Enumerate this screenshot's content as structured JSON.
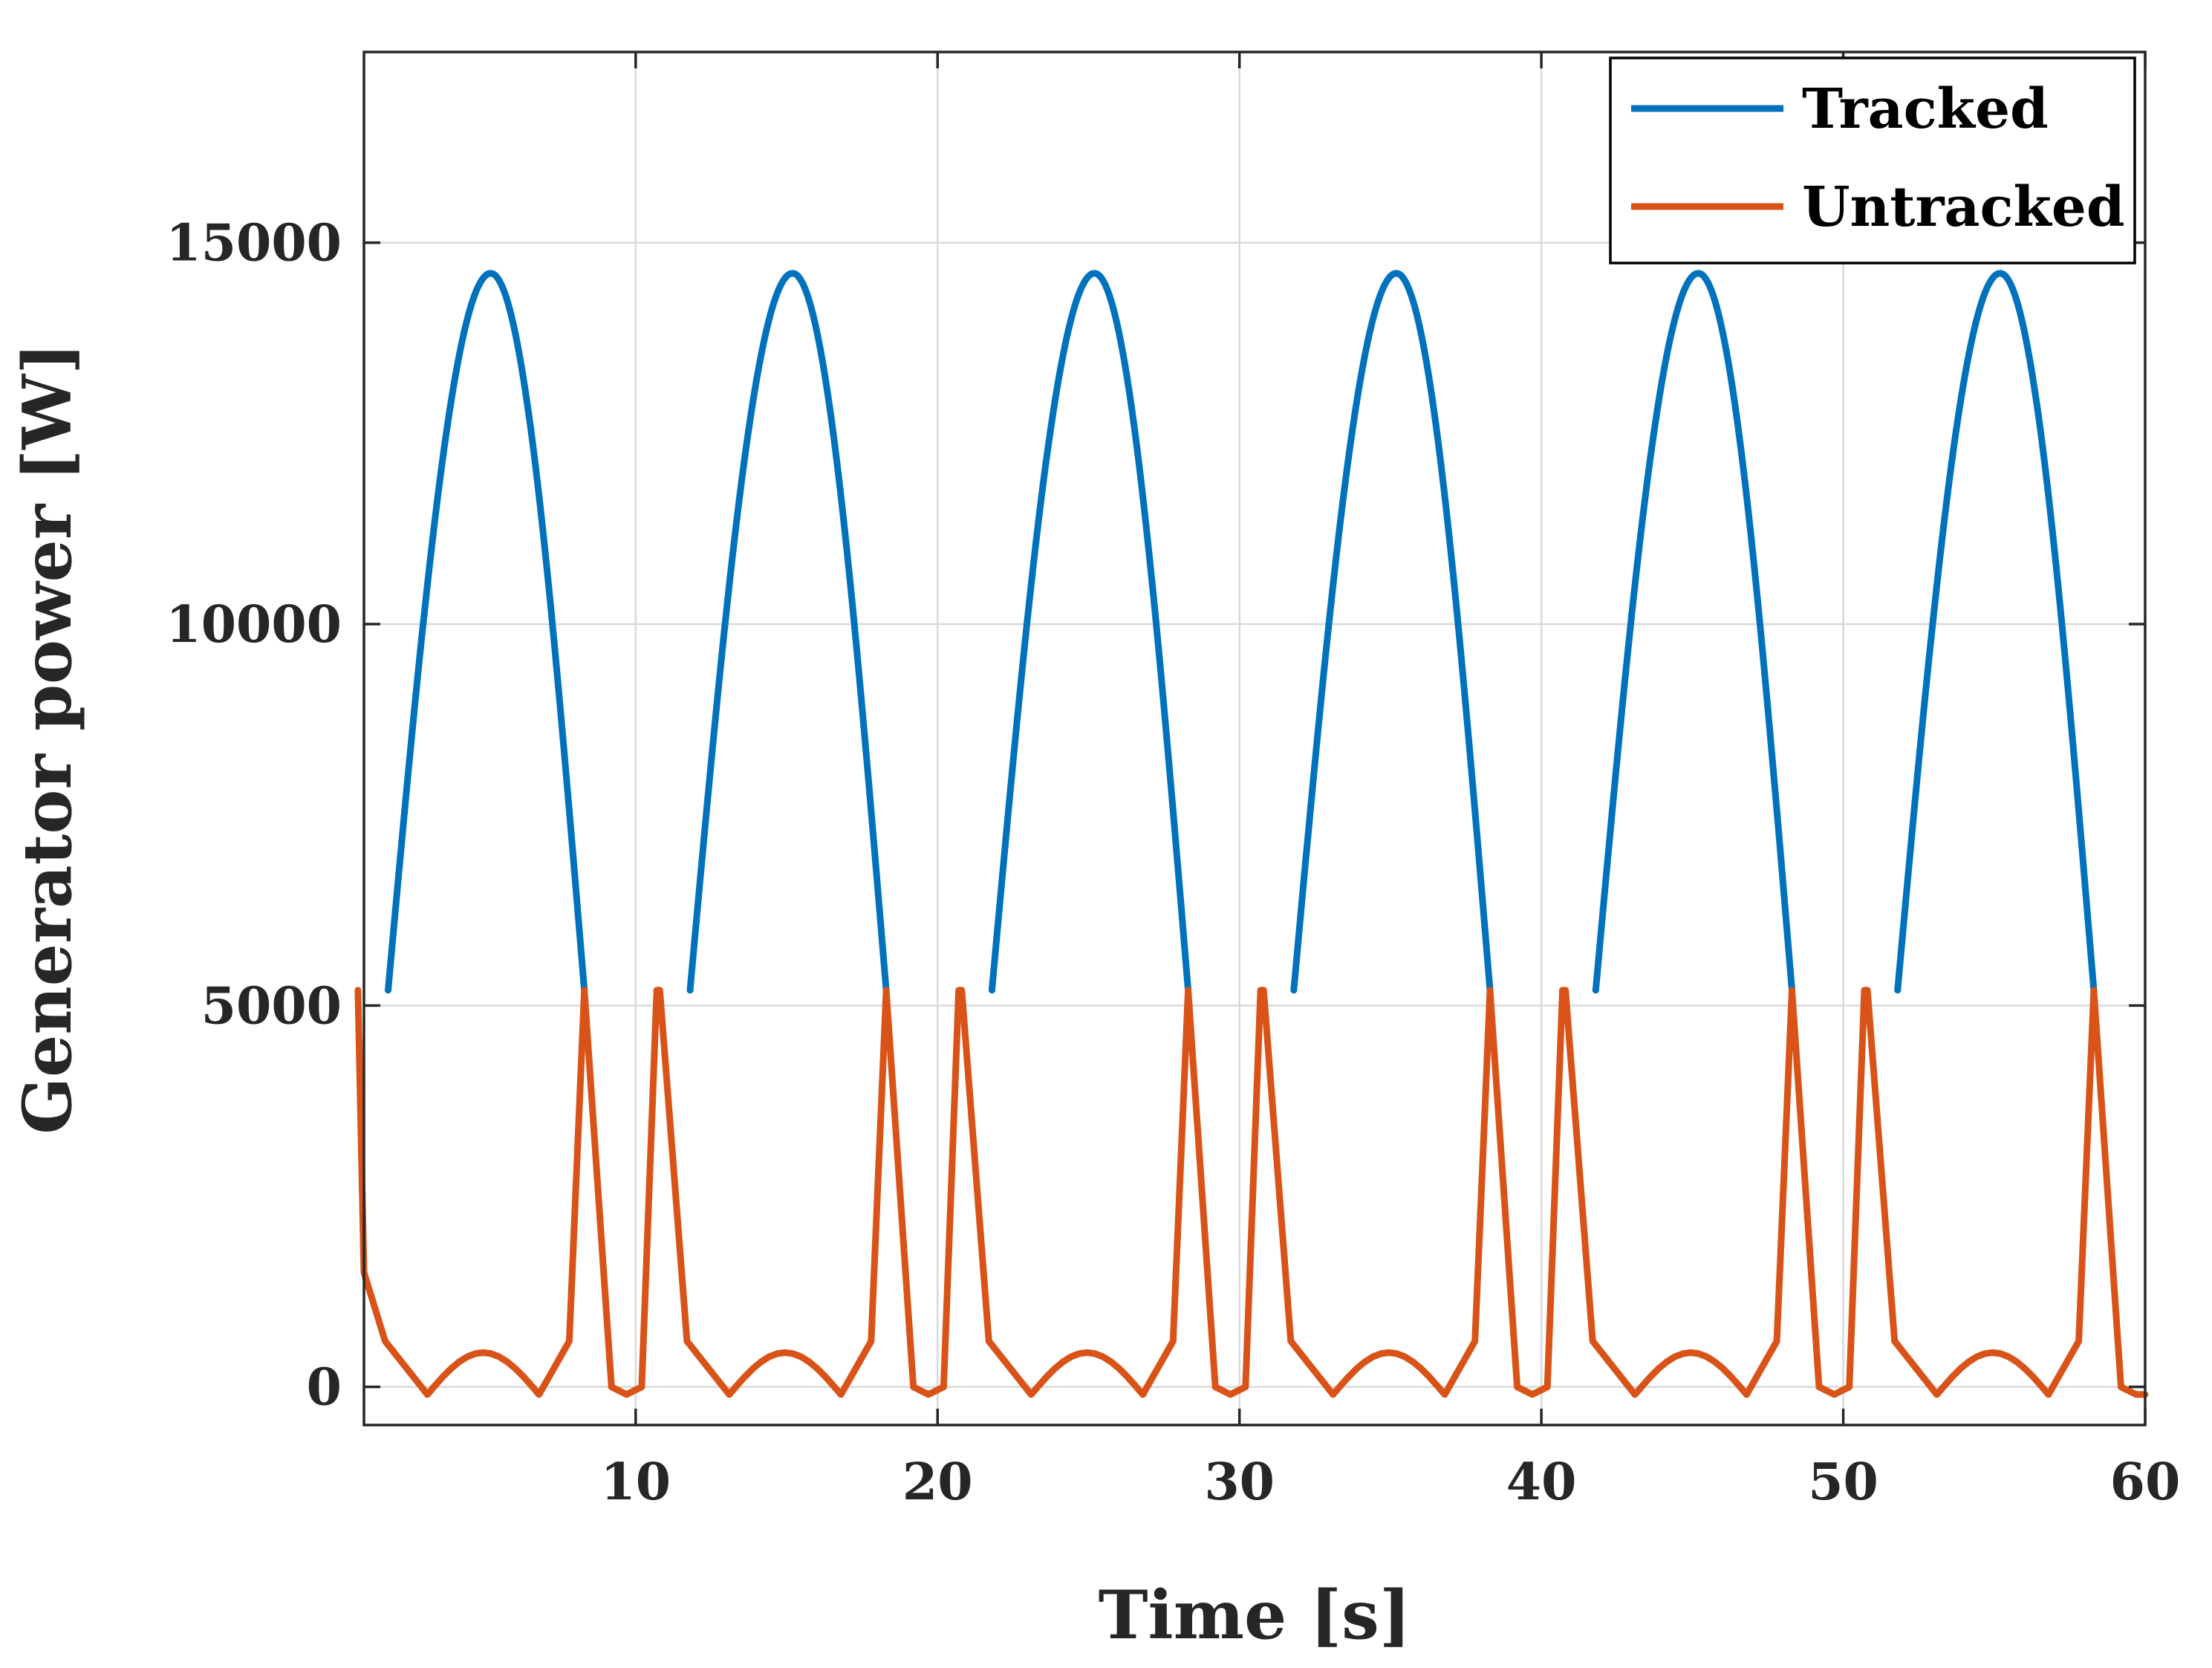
{
  "chart_data": {
    "type": "line",
    "title": "",
    "xlabel": "Time [s]",
    "ylabel": "Generator power [W]",
    "xlim": [
      1,
      60
    ],
    "ylim": [
      -500,
      17500
    ],
    "x_ticks": [
      10,
      20,
      30,
      40,
      50,
      60
    ],
    "y_ticks": [
      0,
      5000,
      10000,
      15000
    ],
    "grid": true,
    "legend_position": "top-right",
    "series": [
      {
        "name": "Tracked",
        "color": "#0072BD",
        "shape": "periodic arches from 5200 W, peak 14600 W",
        "period": 10,
        "segments": [
          {
            "start": 1.8,
            "peak": 5.2,
            "end": 8.3
          },
          {
            "start": 11.8,
            "peak": 15.2,
            "end": 18.3
          },
          {
            "start": 21.8,
            "peak": 25.2,
            "end": 28.3
          },
          {
            "start": 31.8,
            "peak": 35.2,
            "end": 38.3
          },
          {
            "start": 41.8,
            "peak": 45.2,
            "end": 48.3
          },
          {
            "start": 51.8,
            "peak": 55.2,
            "end": 58.3
          }
        ],
        "base": 5200,
        "peak_value": 14600
      },
      {
        "name": "Untracked",
        "color": "#D95319",
        "cycle_template": {
          "x": [
            0.8,
            1.7,
            3.1,
            5.1,
            6.8,
            7.8,
            8.3,
            9.2,
            9.7,
            10.2,
            10.7
          ],
          "y": [
            5200,
            600,
            -100,
            450,
            -100,
            600,
            5200,
            0,
            -100,
            0,
            5200
          ]
        },
        "cycle_offsets": [
          0,
          10,
          20,
          30,
          40,
          50
        ],
        "start": {
          "x": 1.0,
          "y": 1500
        },
        "end": {
          "x": 60.0,
          "y": -100
        }
      }
    ]
  }
}
